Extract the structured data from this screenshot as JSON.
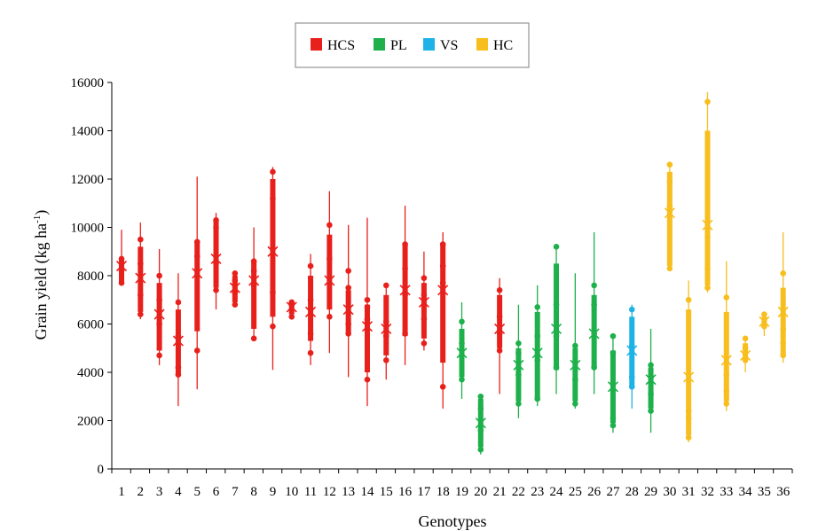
{
  "chart_data": {
    "type": "box",
    "title": "",
    "xlabel": "Genotypes",
    "ylabel": "Grain yield (kg ha",
    "ylabel_superscript": "-1",
    "ylabel_suffix": ")",
    "ylim": [
      0,
      16000
    ],
    "yticks": [
      "0",
      "2000",
      "4000",
      "6000",
      "8000",
      "10000",
      "12000",
      "14000",
      "16000"
    ],
    "grid": false,
    "legend_position": "top-center",
    "groups": [
      {
        "name": "HCS",
        "color": "#E8201C"
      },
      {
        "name": "PL",
        "color": "#1DB04B"
      },
      {
        "name": "VS",
        "color": "#1EB3E6"
      },
      {
        "name": "HC",
        "color": "#F7BE1E"
      }
    ],
    "categories": [
      "1",
      "2",
      "3",
      "4",
      "5",
      "6",
      "7",
      "8",
      "9",
      "10",
      "11",
      "12",
      "13",
      "14",
      "15",
      "16",
      "17",
      "18",
      "19",
      "20",
      "21",
      "22",
      "23",
      "24",
      "25",
      "26",
      "27",
      "28",
      "29",
      "30",
      "31",
      "32",
      "33",
      "34",
      "35",
      "36"
    ],
    "boxes": [
      {
        "g": 0,
        "min": 7600,
        "q1": 7700,
        "q3": 8700,
        "max": 9900,
        "mean": 8400,
        "pts": [
          7700,
          8200,
          8500,
          8700
        ]
      },
      {
        "g": 0,
        "min": 6200,
        "q1": 6500,
        "q3": 9200,
        "max": 10200,
        "mean": 7900,
        "pts": [
          6400,
          7200,
          8500,
          9500
        ]
      },
      {
        "g": 0,
        "min": 4300,
        "q1": 4900,
        "q3": 7700,
        "max": 9100,
        "mean": 6400,
        "pts": [
          4700,
          6000,
          7000,
          8000
        ]
      },
      {
        "g": 0,
        "min": 2600,
        "q1": 3900,
        "q3": 6600,
        "max": 8100,
        "mean": 5300,
        "pts": [
          3900,
          4200,
          5500,
          6900
        ]
      },
      {
        "g": 0,
        "min": 3300,
        "q1": 5700,
        "q3": 9400,
        "max": 12100,
        "mean": 8100,
        "pts": [
          4900,
          8000,
          8800,
          9400
        ]
      },
      {
        "g": 0,
        "min": 6600,
        "q1": 7500,
        "q3": 10300,
        "max": 10600,
        "mean": 8700,
        "pts": [
          7400,
          8500,
          10000,
          10300
        ]
      },
      {
        "g": 0,
        "min": 6700,
        "q1": 6900,
        "q3": 8000,
        "max": 8200,
        "mean": 7500,
        "pts": [
          6800,
          7300,
          7800,
          8100
        ]
      },
      {
        "g": 0,
        "min": 5300,
        "q1": 5800,
        "q3": 8600,
        "max": 10000,
        "mean": 7800,
        "pts": [
          5400,
          7600,
          8200,
          8600
        ]
      },
      {
        "g": 0,
        "min": 4100,
        "q1": 6300,
        "q3": 12000,
        "max": 12500,
        "mean": 9000,
        "pts": [
          5900,
          7300,
          11200,
          12300
        ]
      },
      {
        "g": 0,
        "min": 6200,
        "q1": 6400,
        "q3": 6900,
        "max": 7000,
        "mean": 6700,
        "pts": [
          6300,
          6600,
          6800,
          6900
        ]
      },
      {
        "g": 0,
        "min": 4300,
        "q1": 5300,
        "q3": 8000,
        "max": 8900,
        "mean": 6500,
        "pts": [
          4800,
          5600,
          7000,
          8400
        ]
      },
      {
        "g": 0,
        "min": 4800,
        "q1": 6600,
        "q3": 9700,
        "max": 11500,
        "mean": 7800,
        "pts": [
          6300,
          7900,
          8700,
          10100
        ]
      },
      {
        "g": 0,
        "min": 3800,
        "q1": 5600,
        "q3": 7400,
        "max": 10100,
        "mean": 6600,
        "pts": [
          5600,
          6000,
          7500,
          8200
        ]
      },
      {
        "g": 0,
        "min": 2600,
        "q1": 4000,
        "q3": 6800,
        "max": 10400,
        "mean": 5900,
        "pts": [
          3700,
          6200,
          6700,
          7000
        ]
      },
      {
        "g": 0,
        "min": 3700,
        "q1": 4700,
        "q3": 7200,
        "max": 7700,
        "mean": 5800,
        "pts": [
          4500,
          5500,
          6100,
          7600
        ]
      },
      {
        "g": 0,
        "min": 4300,
        "q1": 5500,
        "q3": 9300,
        "max": 10900,
        "mean": 7400,
        "pts": [
          5600,
          7200,
          8300,
          9300
        ]
      },
      {
        "g": 0,
        "min": 4900,
        "q1": 5400,
        "q3": 7700,
        "max": 9000,
        "mean": 6900,
        "pts": [
          5200,
          6200,
          7200,
          7900
        ]
      },
      {
        "g": 0,
        "min": 2500,
        "q1": 4400,
        "q3": 9300,
        "max": 9800,
        "mean": 7400,
        "pts": [
          3400,
          7700,
          8400,
          9300
        ]
      },
      {
        "g": 1,
        "min": 2900,
        "q1": 3800,
        "q3": 5800,
        "max": 6900,
        "mean": 4800,
        "pts": [
          3700,
          4700,
          5200,
          6100
        ]
      },
      {
        "g": 1,
        "min": 600,
        "q1": 900,
        "q3": 2900,
        "max": 3100,
        "mean": 1900,
        "pts": [
          800,
          1600,
          2500,
          3000
        ]
      },
      {
        "g": 0,
        "min": 3100,
        "q1": 5000,
        "q3": 7200,
        "max": 7900,
        "mean": 5800,
        "pts": [
          4900,
          5600,
          6300,
          7400
        ]
      },
      {
        "g": 1,
        "min": 2100,
        "q1": 2800,
        "q3": 5000,
        "max": 6800,
        "mean": 4300,
        "pts": [
          2700,
          3900,
          4800,
          5200
        ]
      },
      {
        "g": 1,
        "min": 2600,
        "q1": 2900,
        "q3": 6500,
        "max": 7600,
        "mean": 4800,
        "pts": [
          2900,
          4500,
          5500,
          6700
        ]
      },
      {
        "g": 1,
        "min": 3100,
        "q1": 4100,
        "q3": 8500,
        "max": 9200,
        "mean": 5800,
        "pts": [
          4200,
          5500,
          6800,
          9200
        ]
      },
      {
        "g": 1,
        "min": 2500,
        "q1": 2800,
        "q3": 5000,
        "max": 8100,
        "mean": 4300,
        "pts": [
          2700,
          3700,
          4400,
          5100
        ]
      },
      {
        "g": 1,
        "min": 3100,
        "q1": 4200,
        "q3": 7200,
        "max": 9800,
        "mean": 5600,
        "pts": [
          4200,
          5600,
          6800,
          7600
        ]
      },
      {
        "g": 1,
        "min": 1500,
        "q1": 1900,
        "q3": 4900,
        "max": 5500,
        "mean": 3400,
        "pts": [
          1800,
          2100,
          4800,
          5500
        ]
      },
      {
        "g": 2,
        "min": 2500,
        "q1": 3400,
        "q3": 6300,
        "max": 6800,
        "mean": 4900,
        "pts": [
          3400,
          3800,
          5100,
          6600
        ]
      },
      {
        "g": 1,
        "min": 1500,
        "q1": 2500,
        "q3": 4200,
        "max": 5800,
        "mean": 3700,
        "pts": [
          2400,
          3100,
          3800,
          4300
        ]
      },
      {
        "g": 3,
        "min": 8200,
        "q1": 8400,
        "q3": 12300,
        "max": 12700,
        "mean": 10600,
        "pts": [
          8300,
          10900,
          11900,
          12600
        ]
      },
      {
        "g": 3,
        "min": 1100,
        "q1": 1400,
        "q3": 6600,
        "max": 7800,
        "mean": 3800,
        "pts": [
          1300,
          2100,
          2400,
          7000
        ]
      },
      {
        "g": 3,
        "min": 7300,
        "q1": 7600,
        "q3": 14000,
        "max": 15600,
        "mean": 10100,
        "pts": [
          7500,
          8300,
          9600,
          15200
        ]
      },
      {
        "g": 3,
        "min": 2400,
        "q1": 2800,
        "q3": 6500,
        "max": 8600,
        "mean": 4500,
        "pts": [
          2700,
          3200,
          3900,
          7100
        ]
      },
      {
        "g": 3,
        "min": 4000,
        "q1": 4500,
        "q3": 5200,
        "max": 5500,
        "mean": 4700,
        "pts": [
          4500,
          4600,
          5000,
          5400
        ]
      },
      {
        "g": 3,
        "min": 5500,
        "q1": 5900,
        "q3": 6300,
        "max": 6500,
        "mean": 6100,
        "pts": [
          5900,
          6000,
          6200,
          6400
        ]
      },
      {
        "g": 3,
        "min": 4400,
        "q1": 4700,
        "q3": 7500,
        "max": 9800,
        "mean": 6500,
        "pts": [
          4700,
          5200,
          5800,
          8100
        ]
      }
    ]
  }
}
